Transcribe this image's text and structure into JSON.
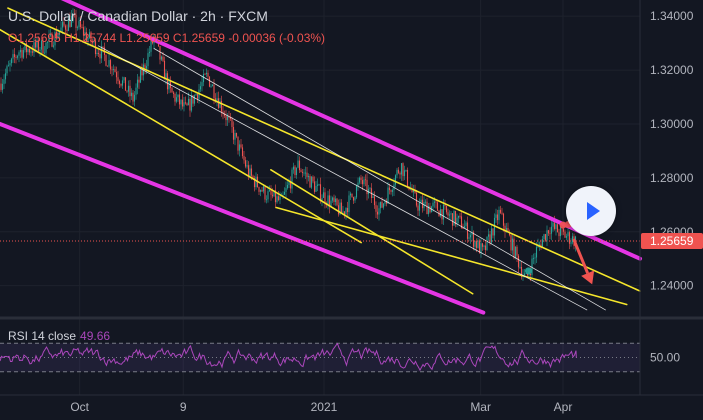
{
  "header": {
    "symbol": "U.S. Dollar / Canadian Dollar · 2h · FXCM"
  },
  "ohlc": {
    "o_key": "O",
    "o": "1.25695",
    "h_key": "H",
    "h": "1.25744",
    "l_key": "L",
    "l": "1.25659",
    "c_key": "C",
    "c": "1.25659",
    "change": "-0.00036 (-0.03%)"
  },
  "rsi": {
    "label": "RSI 14 close",
    "value": "49.66"
  },
  "colors": {
    "background": "#131722",
    "up": "#26a69a",
    "down": "#ef5350",
    "magenta": "#e535e5",
    "yellow": "#f5e62b",
    "rsi": "#ab47bc",
    "price_badge": "#ef5350"
  },
  "chart_data": {
    "type": "candlestick",
    "price_axis": {
      "ticks": [
        1.34,
        1.32,
        1.3,
        1.28,
        1.26,
        1.24
      ],
      "tick_labels": [
        "1.34000",
        "1.32000",
        "1.30000",
        "1.28000",
        "1.26000",
        "1.24000"
      ],
      "range": [
        1.228,
        1.346
      ],
      "current_price": 1.25659,
      "current_price_label": "1.25659"
    },
    "time_axis": {
      "labels": [
        "Oct",
        "9",
        "2021",
        "Mar",
        "Apr"
      ],
      "label_dates": [
        "2020-10-01",
        "2020-11-09",
        "2021-01-01",
        "2021-03-01",
        "2021-04-01"
      ],
      "range": [
        "2020-09-01",
        "2021-04-30"
      ]
    },
    "price_path": [
      [
        "2020-09-01",
        1.315
      ],
      [
        "2020-09-08",
        1.327
      ],
      [
        "2020-09-18",
        1.329
      ],
      [
        "2020-09-28",
        1.339
      ],
      [
        "2020-10-05",
        1.331
      ],
      [
        "2020-10-13",
        1.322
      ],
      [
        "2020-10-21",
        1.309
      ],
      [
        "2020-10-29",
        1.332
      ],
      [
        "2020-11-04",
        1.312
      ],
      [
        "2020-11-10",
        1.305
      ],
      [
        "2020-11-18",
        1.318
      ],
      [
        "2020-11-26",
        1.301
      ],
      [
        "2020-12-04",
        1.281
      ],
      [
        "2020-12-10",
        1.274
      ],
      [
        "2020-12-16",
        1.271
      ],
      [
        "2020-12-22",
        1.285
      ],
      [
        "2020-12-30",
        1.275
      ],
      [
        "2021-01-08",
        1.267
      ],
      [
        "2021-01-15",
        1.279
      ],
      [
        "2021-01-22",
        1.268
      ],
      [
        "2021-01-30",
        1.285
      ],
      [
        "2021-02-05",
        1.27
      ],
      [
        "2021-02-12",
        1.269
      ],
      [
        "2021-02-22",
        1.263
      ],
      [
        "2021-03-02",
        1.252
      ],
      [
        "2021-03-08",
        1.267
      ],
      [
        "2021-03-14",
        1.252
      ],
      [
        "2021-03-18",
        1.242
      ],
      [
        "2021-03-22",
        1.253
      ],
      [
        "2021-03-27",
        1.262
      ],
      [
        "2021-04-03",
        1.258
      ],
      [
        "2021-04-06",
        1.2566
      ]
    ],
    "trendlines": [
      {
        "color": "magenta",
        "points": [
          [
            "2020-09-19",
            1.349
          ],
          [
            "2021-04-30",
            1.25
          ]
        ]
      },
      {
        "color": "magenta",
        "points": [
          [
            "2020-09-01",
            1.3
          ],
          [
            "2021-03-02",
            1.23
          ]
        ]
      },
      {
        "color": "yellow",
        "points": [
          [
            "2020-09-04",
            1.343
          ],
          [
            "2021-04-30",
            1.238
          ]
        ]
      },
      {
        "color": "yellow",
        "points": [
          [
            "2020-09-01",
            1.335
          ],
          [
            "2021-01-15",
            1.256
          ]
        ]
      },
      {
        "color": "yellow",
        "points": [
          [
            "2020-12-14",
            1.269
          ],
          [
            "2021-04-25",
            1.233
          ]
        ]
      },
      {
        "color": "yellow",
        "points": [
          [
            "2020-12-12",
            1.283
          ],
          [
            "2021-02-26",
            1.237
          ]
        ]
      },
      {
        "color": "white",
        "points": [
          [
            "2020-10-29",
            1.328
          ],
          [
            "2021-04-17",
            1.231
          ]
        ]
      },
      {
        "color": "white",
        "points": [
          [
            "2020-10-08",
            1.329
          ],
          [
            "2021-04-10",
            1.231
          ]
        ]
      }
    ],
    "markers": [
      {
        "color": "green",
        "date": "2021-03-19",
        "price": 1.2455
      },
      {
        "color": "red",
        "date": "2021-04-01",
        "price": 1.2625
      },
      {
        "color": "red",
        "date": "2021-04-03",
        "price": 1.2627
      }
    ],
    "arrow": {
      "color": "red",
      "from": [
        "2021-04-05",
        1.2573
      ],
      "to": [
        "2021-04-12",
        1.2405
      ]
    },
    "rsi": {
      "levels": [
        70,
        50,
        30
      ],
      "tick_label": "50.00",
      "value": 49.66
    }
  }
}
